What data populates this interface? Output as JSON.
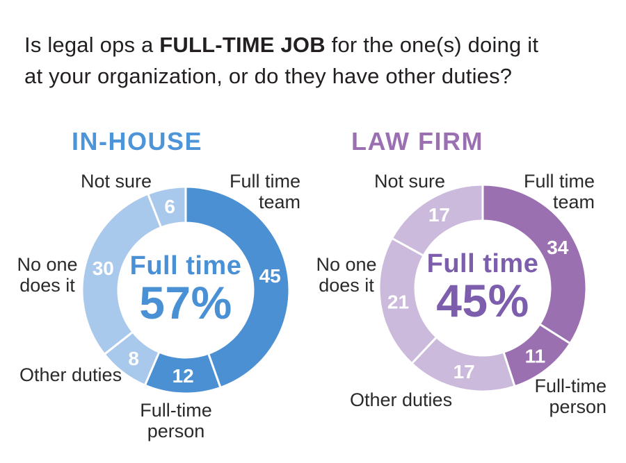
{
  "question": {
    "line1_pre": "Is legal ops a ",
    "line1_bold": "FULL-TIME JOB",
    "line1_post": " for the one(s) doing it",
    "line2": "at your organization, or do they have other duties?"
  },
  "chart_data": [
    {
      "type": "pie",
      "style": "donut",
      "title": "IN-HOUSE",
      "title_color": "#4e94d8",
      "center_label": "Full time",
      "center_value": "57%",
      "center_color": "#4a90d4",
      "legend_position": "around",
      "segments": [
        {
          "label": "Full time team",
          "value": 45,
          "color": "#4a90d2"
        },
        {
          "label": "Full-time person",
          "value": 12,
          "color": "#4a90d2"
        },
        {
          "label": "Other duties",
          "value": 8,
          "color": "#a9c9ec"
        },
        {
          "label": "No one does it",
          "value": 30,
          "color": "#a9c9ec"
        },
        {
          "label": "Not sure",
          "value": 6,
          "color": "#a9c9ec"
        }
      ]
    },
    {
      "type": "pie",
      "style": "donut",
      "title": "LAW FIRM",
      "title_color": "#9a70b2",
      "center_label": "Full time",
      "center_value": "45%",
      "center_color": "#7c5ead",
      "legend_position": "around",
      "segments": [
        {
          "label": "Full time team",
          "value": 34,
          "color": "#9b70b0"
        },
        {
          "label": "Full-time person",
          "value": 11,
          "color": "#9b70b0"
        },
        {
          "label": "Other duties",
          "value": 17,
          "color": "#cbbadc"
        },
        {
          "label": "No one does it",
          "value": 21,
          "color": "#cbbadc"
        },
        {
          "label": "Not sure",
          "value": 17,
          "color": "#cbbadc"
        }
      ]
    }
  ]
}
